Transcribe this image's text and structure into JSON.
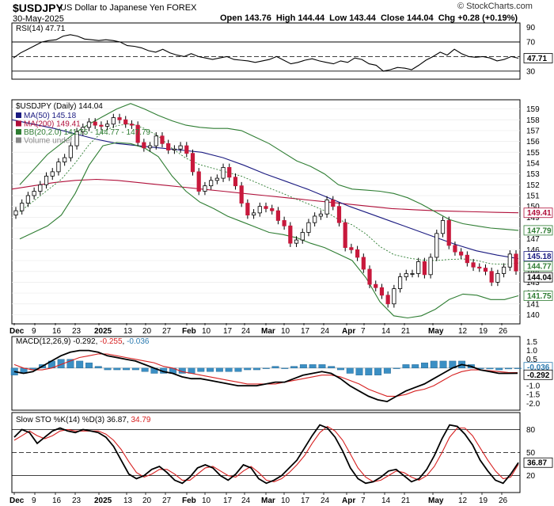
{
  "header": {
    "symbol": "$USDJPY",
    "description": "US Dollar to Japanese Yen FOREX",
    "date": "30-May-2025",
    "ohlc": "Open 143.76  High 144.44  Low 143.44  Close 144.04  Chg +0.28 (+0.19%)",
    "watermark": "© StockCharts.com"
  },
  "chart_data": [
    {
      "type": "line",
      "panel": "rsi",
      "title": "RSI(14) 47.71",
      "y_ticks": [
        90,
        70,
        50,
        30
      ],
      "levels": [
        70,
        30
      ],
      "ylim": [
        20,
        95
      ],
      "last_label": "47.71",
      "colors": {
        "line": "#000000",
        "levels": "#000000"
      },
      "values": [
        48,
        55,
        60,
        65,
        70,
        72,
        73,
        78,
        80,
        78,
        74,
        73,
        72,
        73,
        72,
        70,
        65,
        64,
        62,
        58,
        56,
        60,
        55,
        52,
        50,
        54,
        50,
        48,
        46,
        48,
        50,
        46,
        45,
        44,
        42,
        44,
        46,
        50,
        45,
        40,
        42,
        45,
        47,
        44,
        42,
        40,
        44,
        42,
        48,
        46,
        40,
        38,
        30,
        32,
        35,
        34,
        32,
        38,
        45,
        50,
        56,
        52,
        60,
        54,
        50,
        49,
        50,
        48,
        44,
        46,
        50,
        47.71
      ]
    },
    {
      "type": "candlestick",
      "panel": "price",
      "title": "$USDJPY (Daily) 144.04",
      "legend": [
        {
          "label": "MA(50) 145.18",
          "color": "#1a1a80"
        },
        {
          "label": "MA(200) 149.41",
          "color": "#b0103a"
        },
        {
          "label": "BB(20,2.0) 141.75 - 144.77 - 147.79",
          "color": "#2e7d32"
        },
        {
          "label": "Volume undef",
          "color": "#888888"
        }
      ],
      "ylim": [
        139.3,
        159.7
      ],
      "y_ticks": [
        159,
        158,
        157,
        156,
        155,
        154,
        153,
        152,
        151,
        150,
        149,
        148,
        147,
        146,
        145,
        144,
        143,
        142,
        141,
        140
      ],
      "right_labels": [
        {
          "text": "149.41",
          "value": 149.41,
          "color": "#b0103a"
        },
        {
          "text": "147.79",
          "value": 147.79,
          "color": "#2e7d32"
        },
        {
          "text": "145.18",
          "value": 145.18,
          "color": "#1a1a80"
        },
        {
          "text": "144.77",
          "value": 144.77,
          "color": "#2e7d32"
        },
        {
          "text": "144.04",
          "value": 144.04,
          "color": "#000000"
        },
        {
          "text": "141.75",
          "value": 141.75,
          "color": "#2e7d32"
        }
      ],
      "closes": [
        149.6,
        150.3,
        151.0,
        151.4,
        152.0,
        152.8,
        153.2,
        154.1,
        154.5,
        155.6,
        156.9,
        157.3,
        157.8,
        157.5,
        157.4,
        157.6,
        158.2,
        158.0,
        157.6,
        157.5,
        155.9,
        155.4,
        155.6,
        156.5,
        155.8,
        155.2,
        155.3,
        155.6,
        154.9,
        153.2,
        151.4,
        151.9,
        152.4,
        152.6,
        153.6,
        152.7,
        151.9,
        150.3,
        149.2,
        149.4,
        150.0,
        149.8,
        149.6,
        148.7,
        148.2,
        146.6,
        146.9,
        147.6,
        148.5,
        149.1,
        149.3,
        150.6,
        150.0,
        148.5,
        146.2,
        146.0,
        145.3,
        144.2,
        142.8,
        142.5,
        141.8,
        141.0,
        142.4,
        143.5,
        143.8,
        143.8,
        144.9,
        143.7,
        145.3,
        147.5,
        148.7,
        146.4,
        145.8,
        145.5,
        144.8,
        144.4,
        144.3,
        144.0,
        143.0,
        143.8,
        144.4,
        145.6,
        144.04
      ],
      "ma50": [
        158.0,
        157.6,
        157.2,
        156.7,
        156.2,
        155.8,
        155.6,
        155.4,
        155.2,
        155.0,
        154.5,
        153.8,
        153.0,
        152.3,
        151.6,
        150.8,
        150.0,
        149.3,
        148.6,
        147.9,
        147.2,
        146.5,
        145.9,
        145.5,
        145.18
      ],
      "ma200": [
        151.6,
        151.9,
        152.2,
        152.4,
        152.5,
        152.4,
        152.2,
        152.0,
        151.8,
        151.6,
        151.4,
        151.2,
        151.0,
        150.8,
        150.6,
        150.4,
        150.2,
        150.0,
        149.8,
        149.7,
        149.6,
        149.55,
        149.5,
        149.45,
        149.41
      ],
      "bb_upper": [
        152.0,
        153.4,
        154.8,
        155.8,
        156.8,
        157.6,
        158.3,
        159.0,
        159.5,
        159.0,
        158.4,
        157.9,
        157.5,
        157.3,
        157.2,
        157.2,
        157.0,
        156.4,
        155.8,
        155.0,
        154.2,
        153.7,
        153.0,
        152.0,
        151.6,
        151.5,
        151.4,
        151.2,
        150.8,
        150.2,
        149.5,
        148.8,
        148.4,
        148.2,
        148.0,
        147.9,
        147.79
      ],
      "bb_lower": [
        147.0,
        147.6,
        148.2,
        149.2,
        151.2,
        153.8,
        155.6,
        155.9,
        155.8,
        155.4,
        154.6,
        152.8,
        151.4,
        150.4,
        149.8,
        149.1,
        148.6,
        148.1,
        147.6,
        147.4,
        147.1,
        146.6,
        146.2,
        145.6,
        145.0,
        143.4,
        141.2,
        139.9,
        139.7,
        139.9,
        140.5,
        141.4,
        141.9,
        141.8,
        141.4,
        141.4,
        141.75
      ]
    },
    {
      "type": "line",
      "panel": "macd",
      "title": "MACD(12,26,9) -0.292, -0.255, -0.036",
      "title_parts": {
        "name": "MACD(12,26,9)",
        "macd": "-0.292",
        "signal": "-0.255",
        "hist": "-0.036"
      },
      "ylim": [
        -2.3,
        1.7
      ],
      "y_ticks": [
        1.5,
        1.0,
        0.5,
        0.0,
        -1.0,
        -1.5,
        -2.0
      ],
      "right_labels": [
        {
          "text": "-0.036",
          "value": -0.036,
          "color": "#2a7ab0"
        },
        {
          "text": "-0.292",
          "value": -0.292,
          "color": "#000000"
        }
      ],
      "colors": {
        "macd": "#000000",
        "signal": "#d62020",
        "hist": "#3b8fc4"
      },
      "macd": [
        -0.2,
        -0.3,
        -0.2,
        0.1,
        0.4,
        0.7,
        0.9,
        1.0,
        1.0,
        0.9,
        0.7,
        0.6,
        0.5,
        0.4,
        0.2,
        0.0,
        -0.2,
        -0.3,
        -0.5,
        -0.6,
        -0.6,
        -0.7,
        -0.8,
        -0.9,
        -1.0,
        -1.0,
        -1.0,
        -0.9,
        -0.8,
        -0.8,
        -0.6,
        -0.4,
        -0.3,
        -0.2,
        -0.3,
        -0.6,
        -1.0,
        -1.3,
        -1.6,
        -1.8,
        -1.9,
        -1.6,
        -1.3,
        -1.1,
        -0.9,
        -0.6,
        -0.3,
        0.0,
        0.2,
        0.1,
        -0.1,
        -0.2,
        -0.3,
        -0.3,
        -0.292
      ],
      "signal": [
        0.2,
        0.0,
        -0.1,
        -0.1,
        0.0,
        0.2,
        0.4,
        0.6,
        0.7,
        0.8,
        0.8,
        0.7,
        0.6,
        0.5,
        0.4,
        0.3,
        0.1,
        0.0,
        -0.2,
        -0.3,
        -0.4,
        -0.5,
        -0.6,
        -0.7,
        -0.8,
        -0.9,
        -0.9,
        -0.9,
        -0.9,
        -0.8,
        -0.7,
        -0.6,
        -0.5,
        -0.4,
        -0.4,
        -0.5,
        -0.7,
        -0.9,
        -1.2,
        -1.4,
        -1.6,
        -1.6,
        -1.5,
        -1.3,
        -1.2,
        -1.0,
        -0.7,
        -0.4,
        -0.2,
        -0.1,
        -0.1,
        -0.15,
        -0.2,
        -0.25,
        -0.255
      ]
    },
    {
      "type": "line",
      "panel": "sto",
      "title": "Slow STO %K(14) %D(3) 36.87, 34.79",
      "title_parts": {
        "name": "Slow STO %K(14) %D(3)",
        "k": "36.87",
        "d": "34.79"
      },
      "ylim": [
        0,
        100
      ],
      "y_ticks": [
        80,
        50,
        20
      ],
      "levels": [
        80,
        50,
        20
      ],
      "last_label": "36.87",
      "colors": {
        "k": "#000000",
        "d": "#d62020"
      },
      "k": [
        70,
        80,
        76,
        62,
        70,
        78,
        82,
        78,
        76,
        80,
        78,
        76,
        70,
        58,
        40,
        22,
        16,
        20,
        28,
        32,
        24,
        14,
        10,
        18,
        30,
        34,
        30,
        20,
        14,
        22,
        34,
        30,
        16,
        10,
        14,
        20,
        30,
        40,
        56,
        72,
        86,
        82,
        70,
        52,
        30,
        16,
        10,
        12,
        18,
        26,
        28,
        20,
        12,
        16,
        28,
        46,
        68,
        86,
        84,
        74,
        60,
        40,
        26,
        14,
        10,
        22,
        36.87
      ],
      "d": [
        66,
        72,
        78,
        72,
        68,
        72,
        78,
        80,
        78,
        78,
        78,
        78,
        74,
        66,
        54,
        38,
        24,
        18,
        22,
        28,
        28,
        22,
        14,
        14,
        22,
        30,
        32,
        26,
        20,
        18,
        26,
        32,
        24,
        14,
        12,
        16,
        24,
        34,
        46,
        62,
        76,
        84,
        78,
        66,
        48,
        30,
        18,
        12,
        14,
        20,
        26,
        24,
        18,
        14,
        20,
        32,
        50,
        70,
        82,
        82,
        72,
        56,
        40,
        26,
        16,
        18,
        34.79
      ]
    }
  ],
  "x_axis_labels": [
    "Dec",
    "9",
    "16",
    "23",
    "2025",
    "13",
    "20",
    "27",
    "Feb",
    "10",
    "17",
    "24",
    "Mar",
    "10",
    "17",
    "24",
    "Apr",
    "7",
    "14",
    "21",
    "May",
    "12",
    "19",
    "26"
  ]
}
